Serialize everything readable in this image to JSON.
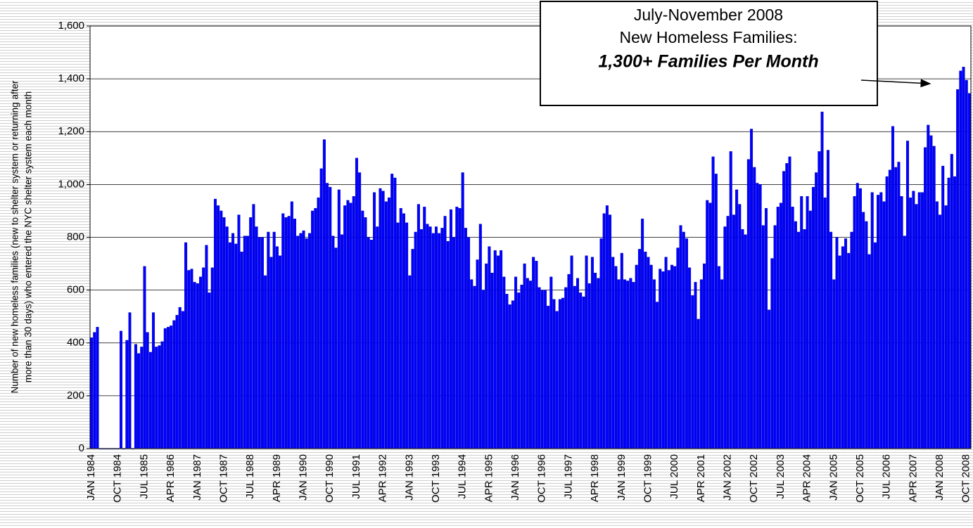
{
  "chart_data": {
    "type": "bar",
    "ylabel": [
      "Number of new homeless families (new to shelter system or returning after",
      "more than 30 days) who entered the NYC shelter system each month"
    ],
    "annotation": [
      "July-November 2008",
      "New Homeless Families:",
      "1,300+ Families Per Month"
    ],
    "color": "#0000ff",
    "grid": true,
    "ylim": [
      0,
      1600
    ],
    "yticks": [
      0,
      200,
      400,
      600,
      800,
      {
        "value": 1000,
        "label": "1,000"
      },
      {
        "value": 1200,
        "label": "1,200"
      },
      {
        "value": 1400,
        "label": "1,400"
      },
      {
        "value": 1600,
        "label": "1,600"
      }
    ],
    "categories": [
      "JAN 1984",
      null,
      null,
      null,
      null,
      null,
      null,
      null,
      null,
      "OCT 1984",
      null,
      null,
      null,
      null,
      null,
      null,
      null,
      null,
      "JUL 1985",
      null,
      null,
      null,
      null,
      null,
      null,
      null,
      null,
      "APR 1986",
      null,
      null,
      null,
      null,
      null,
      null,
      null,
      null,
      "JAN 1987",
      null,
      null,
      null,
      null,
      null,
      null,
      null,
      null,
      "OCT 1987",
      null,
      null,
      null,
      null,
      null,
      null,
      null,
      null,
      "JUL 1988",
      null,
      null,
      null,
      null,
      null,
      null,
      null,
      null,
      "APR 1989",
      null,
      null,
      null,
      null,
      null,
      null,
      null,
      null,
      "JAN 1990",
      null,
      null,
      null,
      null,
      null,
      null,
      null,
      null,
      "OCT 1990",
      null,
      null,
      null,
      null,
      null,
      null,
      null,
      null,
      "JUL 1991",
      null,
      null,
      null,
      null,
      null,
      null,
      null,
      null,
      "APR 1992",
      null,
      null,
      null,
      null,
      null,
      null,
      null,
      null,
      "JAN 1993",
      null,
      null,
      null,
      null,
      null,
      null,
      null,
      null,
      "OCT 1993",
      null,
      null,
      null,
      null,
      null,
      null,
      null,
      null,
      "JUL 1994",
      null,
      null,
      null,
      null,
      null,
      null,
      null,
      null,
      "APR 1995",
      null,
      null,
      null,
      null,
      null,
      null,
      null,
      null,
      "JAN 1996",
      null,
      null,
      null,
      null,
      null,
      null,
      null,
      null,
      "OCT 1996",
      null,
      null,
      null,
      null,
      null,
      null,
      null,
      null,
      "JUL 1997",
      null,
      null,
      null,
      null,
      null,
      null,
      null,
      null,
      "APR 1998",
      null,
      null,
      null,
      null,
      null,
      null,
      null,
      null,
      "JAN 1999",
      null,
      null,
      null,
      null,
      null,
      null,
      null,
      null,
      "OCT 1999",
      null,
      null,
      null,
      null,
      null,
      null,
      null,
      null,
      "JUL 2000",
      null,
      null,
      null,
      null,
      null,
      null,
      null,
      null,
      "APR 2001",
      null,
      null,
      null,
      null,
      null,
      null,
      null,
      null,
      "JAN 2002",
      null,
      null,
      null,
      null,
      null,
      null,
      null,
      null,
      "OCT 2002",
      null,
      null,
      null,
      null,
      null,
      null,
      null,
      null,
      "JUL 2003",
      null,
      null,
      null,
      null,
      null,
      null,
      null,
      null,
      "APR 2004",
      null,
      null,
      null,
      null,
      null,
      null,
      null,
      null,
      "JAN 2005",
      null,
      null,
      null,
      null,
      null,
      null,
      null,
      null,
      "OCT 2005",
      null,
      null,
      null,
      null,
      null,
      null,
      null,
      null,
      "JUL 2006",
      null,
      null,
      null,
      null,
      null,
      null,
      null,
      null,
      "APR 2007",
      null,
      null,
      null,
      null,
      null,
      null,
      null,
      null,
      "JAN 2008",
      null,
      null,
      null,
      null,
      null,
      null,
      null,
      null,
      "OCT 2008",
      null
    ],
    "values": [
      420,
      440,
      460,
      0,
      0,
      0,
      0,
      0,
      0,
      0,
      445,
      0,
      410,
      515,
      0,
      395,
      360,
      385,
      690,
      440,
      365,
      515,
      385,
      390,
      405,
      455,
      460,
      465,
      485,
      505,
      535,
      520,
      780,
      675,
      680,
      630,
      625,
      650,
      685,
      770,
      590,
      685,
      945,
      920,
      900,
      875,
      840,
      780,
      815,
      775,
      885,
      745,
      805,
      805,
      875,
      925,
      840,
      800,
      800,
      655,
      820,
      725,
      820,
      765,
      730,
      890,
      875,
      880,
      935,
      870,
      805,
      815,
      825,
      795,
      815,
      900,
      910,
      950,
      1060,
      1170,
      1005,
      990,
      805,
      760,
      980,
      810,
      920,
      940,
      930,
      955,
      1100,
      1045,
      900,
      875,
      800,
      790,
      970,
      840,
      985,
      975,
      935,
      950,
      1040,
      1025,
      855,
      910,
      890,
      855,
      655,
      755,
      820,
      925,
      830,
      915,
      850,
      840,
      815,
      840,
      815,
      835,
      880,
      785,
      905,
      800,
      915,
      910,
      1045,
      835,
      800,
      640,
      615,
      715,
      850,
      600,
      700,
      765,
      665,
      750,
      730,
      750,
      650,
      585,
      545,
      560,
      650,
      590,
      620,
      700,
      645,
      635,
      725,
      710,
      610,
      600,
      600,
      540,
      650,
      565,
      520,
      565,
      570,
      610,
      660,
      730,
      615,
      645,
      590,
      575,
      730,
      625,
      725,
      665,
      645,
      795,
      890,
      920,
      885,
      725,
      690,
      640,
      740,
      640,
      635,
      645,
      630,
      695,
      755,
      870,
      745,
      725,
      695,
      640,
      555,
      680,
      670,
      725,
      675,
      695,
      690,
      760,
      845,
      820,
      795,
      685,
      580,
      630,
      490,
      640,
      700,
      940,
      930,
      1105,
      1040,
      690,
      640,
      840,
      880,
      1125,
      885,
      980,
      925,
      830,
      810,
      1095,
      1210,
      1065,
      1005,
      1000,
      845,
      910,
      525,
      720,
      845,
      915,
      930,
      1050,
      1080,
      1105,
      915,
      860,
      820,
      955,
      830,
      955,
      900,
      990,
      1045,
      1125,
      1275,
      950,
      1130,
      820,
      640,
      800,
      730,
      765,
      795,
      740,
      820,
      955,
      1005,
      985,
      895,
      860,
      735,
      970,
      780,
      960,
      970,
      935,
      1030,
      1055,
      1220,
      1065,
      1085,
      955,
      805,
      1165,
      950,
      975,
      925,
      970,
      970,
      1140,
      1225,
      1185,
      1145,
      935,
      885,
      1070,
      920,
      1025,
      1115,
      1030,
      1360,
      1430,
      1445,
      1395,
      1345
    ]
  }
}
